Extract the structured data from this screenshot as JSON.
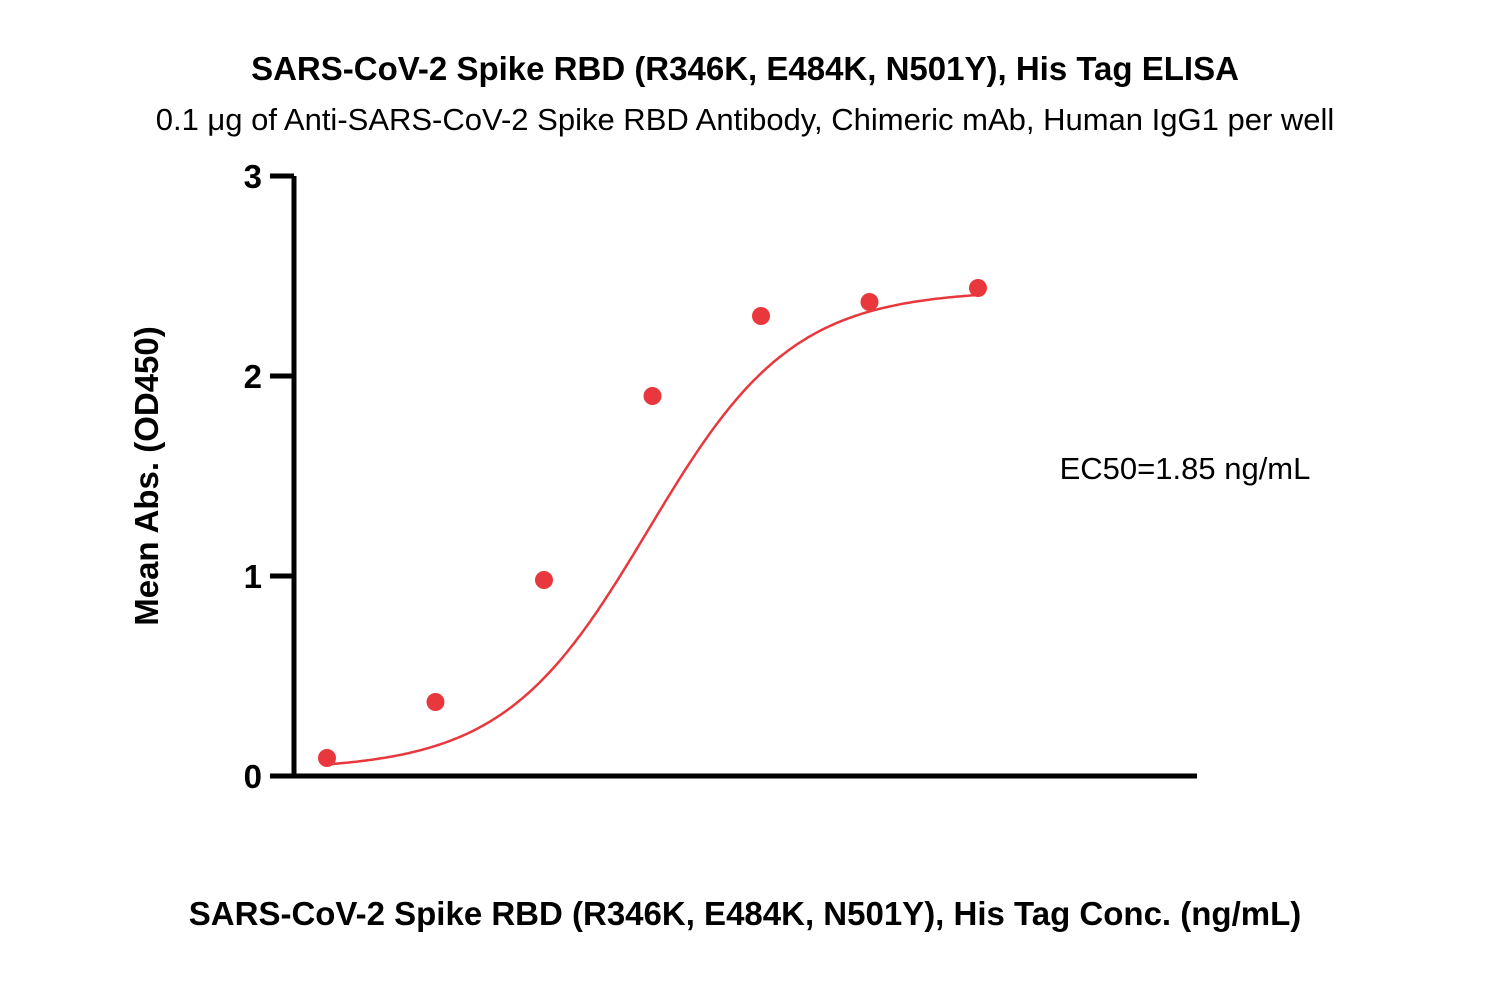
{
  "chart_data": {
    "type": "scatter",
    "title": "SARS-CoV-2 Spike RBD (R346K, E484K, N501Y), His Tag ELISA",
    "subtitle": "0.1 μg of Anti-SARS-CoV-2 Spike RBD Antibody, Chimeric mAb, Human IgG1 per well",
    "xlabel": "SARS-CoV-2 Spike RBD (R346K, E484K, N501Y), His Tag Conc. (ng/mL)",
    "ylabel": "Mean Abs. (OD450)",
    "ylim": [
      0,
      3
    ],
    "yticks": [
      "0",
      "1",
      "2",
      "3"
    ],
    "x_scale": "log",
    "x_ticks_shown": false,
    "grid": false,
    "annotation": "EC50=1.85 ng/mL",
    "colors": {
      "series": "#e8383d",
      "axes": "#000000"
    },
    "series": [
      {
        "values": [
          0.09,
          0.37,
          0.98,
          1.9,
          2.3,
          2.37,
          2.44
        ],
        "fit_curve": "4PL",
        "fit": {
          "bottom": 0.03,
          "top": 2.43,
          "ec50_index": 2.96,
          "hill_per_point": 1.5
        }
      }
    ]
  }
}
